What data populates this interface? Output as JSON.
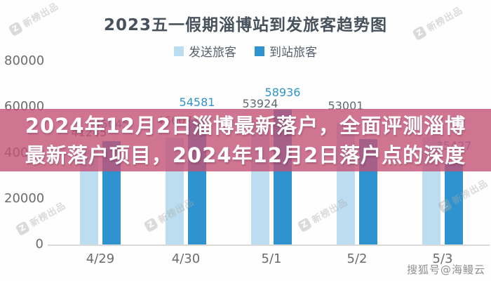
{
  "chart_data": {
    "type": "bar",
    "title": "2023五一假期淄博站到发旅客趋势图",
    "categories": [
      "4/29",
      "4/30",
      "5/1",
      "5/2",
      "5/3"
    ],
    "series": [
      {
        "name": "发送旅客",
        "color": "#bcdcf0",
        "label_color": "#5f6a72",
        "values": [
          41245,
          46607,
          53924,
          53001,
          47000
        ],
        "label_visible": [
          true,
          true,
          true,
          true,
          false
        ],
        "estimated": [
          false,
          false,
          false,
          false,
          true
        ]
      },
      {
        "name": "到站旅客",
        "color": "#2e93cf",
        "label_color": "#2e93cf",
        "values": [
          45045,
          54581,
          58936,
          46000,
          35427
        ],
        "label_visible": [
          true,
          true,
          true,
          false,
          true
        ],
        "estimated": [
          false,
          false,
          false,
          true,
          false
        ]
      }
    ],
    "ylim": [
      0,
      80000
    ],
    "yticks": [
      0,
      20000,
      40000,
      60000,
      80000
    ],
    "grid": false,
    "legend_position": "top",
    "notes": "Labels for 5/2 到站旅客 and 5/3 发送旅客 are hidden behind the pink headline banner; their values are estimated from bar heights."
  },
  "overlay": {
    "line1": "2024年12月2日淄博最新落户，全面评测淄博",
    "line2": "最新落户项目，2024年12月2日落户点的深度"
  },
  "watermark": {
    "brand": "新榜出品",
    "brand_logo_letter": "Z",
    "sohu": "搜狐号@海鳗云"
  },
  "colors": {
    "bar_depart": "#bcdcf0",
    "bar_arrive": "#2e93cf",
    "overlay_band": "rgba(196,82,118,0.8)",
    "title_text": "#47525c",
    "axis_text": "#6b6b6b"
  }
}
